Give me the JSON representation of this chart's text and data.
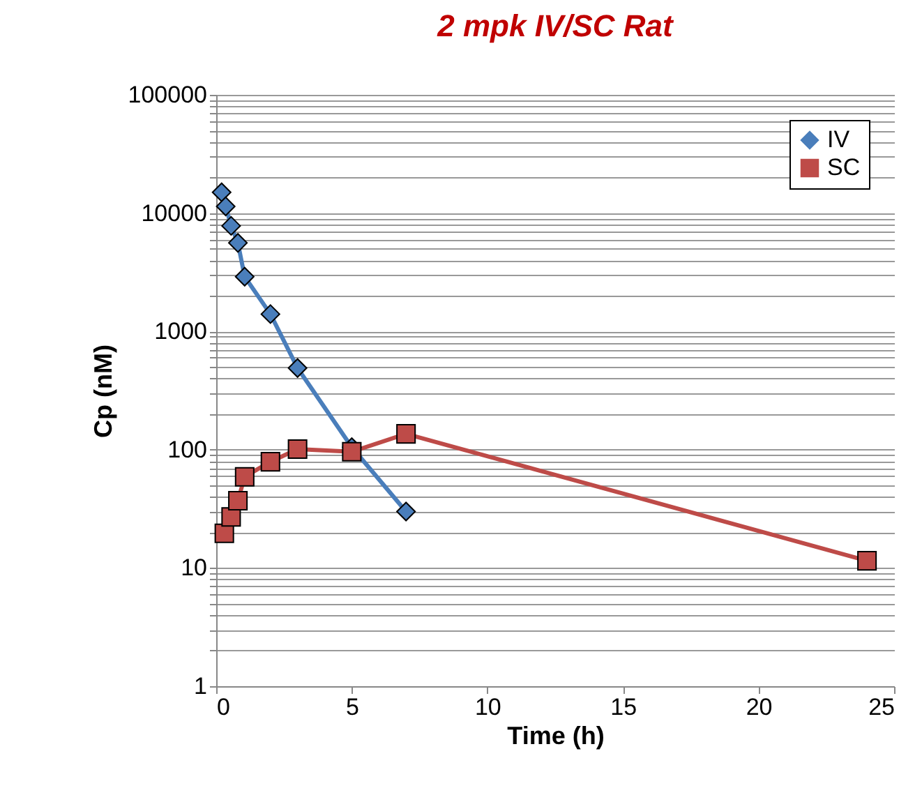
{
  "chart_data": {
    "type": "line",
    "title": "2 mpk IV/SC Rat",
    "xlabel": "Time (h)",
    "ylabel": "Cp (nM)",
    "series": [
      {
        "name": "IV",
        "color": "#4a7ebb",
        "marker": "diamond",
        "x": [
          0.2,
          0.35,
          0.55,
          0.8,
          1.05,
          2,
          3,
          5,
          7
        ],
        "values": [
          15000,
          11400,
          7800,
          5600,
          2900,
          1400,
          490,
          105,
          30
        ]
      },
      {
        "name": "SC",
        "color": "#be4b48",
        "marker": "square",
        "x": [
          0.3,
          0.55,
          0.8,
          1.05,
          2,
          3,
          5,
          7,
          24
        ],
        "values": [
          19.6,
          27,
          37,
          59,
          79,
          101,
          96,
          136,
          11.5
        ]
      }
    ],
    "xlim": [
      0,
      25
    ],
    "xticks": [
      0,
      5,
      10,
      15,
      20,
      25
    ],
    "ylim": [
      1,
      100000
    ],
    "yticks": [
      1,
      {
        "value": 2,
        "label": null
      },
      {
        "value": 3,
        "label": null
      },
      {
        "value": 4,
        "label": null
      },
      {
        "value": 5,
        "label": null
      },
      {
        "value": 6,
        "label": null
      },
      {
        "value": 7,
        "label": null
      },
      {
        "value": 8,
        "label": null
      },
      {
        "value": 9,
        "label": null
      },
      10,
      {
        "value": 20,
        "label": null
      },
      {
        "value": 30,
        "label": null
      },
      {
        "value": 40,
        "label": null
      },
      {
        "value": 50,
        "label": null
      },
      {
        "value": 60,
        "label": null
      },
      {
        "value": 70,
        "label": null
      },
      {
        "value": 80,
        "label": null
      },
      {
        "value": 90,
        "label": null
      },
      100,
      {
        "value": 200,
        "label": null
      },
      {
        "value": 300,
        "label": null
      },
      {
        "value": 400,
        "label": null
      },
      {
        "value": 500,
        "label": null
      },
      {
        "value": 600,
        "label": null
      },
      {
        "value": 700,
        "label": null
      },
      {
        "value": 800,
        "label": null
      },
      {
        "value": 900,
        "label": null
      },
      1000,
      {
        "value": 2000,
        "label": null
      },
      {
        "value": 3000,
        "label": null
      },
      {
        "value": 4000,
        "label": null
      },
      {
        "value": 5000,
        "label": null
      },
      {
        "value": 6000,
        "label": null
      },
      {
        "value": 7000,
        "label": null
      },
      {
        "value": 8000,
        "label": null
      },
      {
        "value": 9000,
        "label": null
      },
      10000,
      {
        "value": 20000,
        "label": null
      },
      {
        "value": 30000,
        "label": null
      },
      {
        "value": 40000,
        "label": null
      },
      {
        "value": 50000,
        "label": null
      },
      {
        "value": 60000,
        "label": null
      },
      {
        "value": 70000,
        "label": null
      },
      {
        "value": 80000,
        "label": null
      },
      {
        "value": 90000,
        "label": null
      },
      100000
    ],
    "log": "y",
    "grid": "y",
    "legend": "top right",
    "line_style": "solid"
  }
}
